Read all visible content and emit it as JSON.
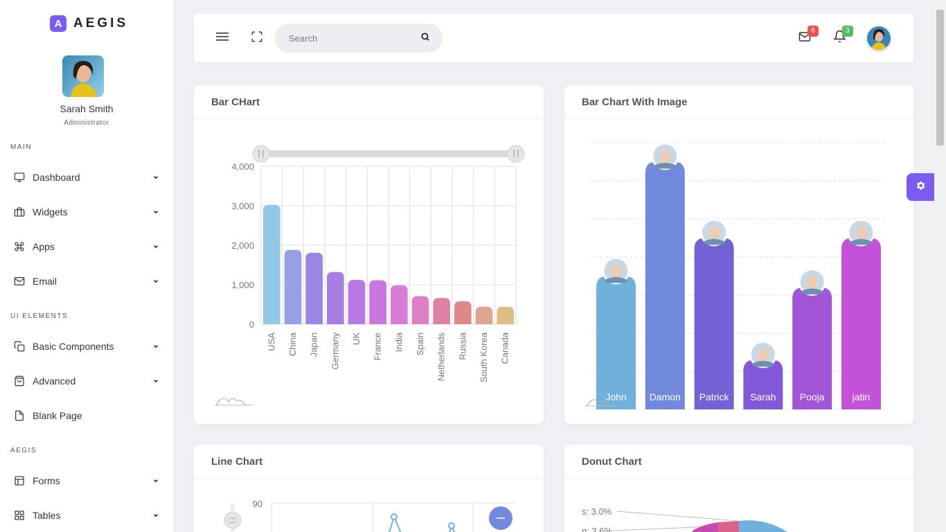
{
  "brand": {
    "name": "AEGIS",
    "logo_letter": "A"
  },
  "profile": {
    "name": "Sarah Smith",
    "role": "Administrator"
  },
  "sidebar": {
    "sections": [
      {
        "title": "MAIN",
        "items": [
          "Dashboard",
          "Widgets",
          "Apps",
          "Email"
        ]
      },
      {
        "title": "UI ELEMENTS",
        "items": [
          "Basic Components",
          "Advanced",
          "Blank Page"
        ]
      },
      {
        "title": "AEGIS",
        "items": [
          "Forms",
          "Tables"
        ]
      }
    ],
    "items": [
      {
        "label": "Dashboard",
        "icon": "monitor-icon",
        "has_submenu": true
      },
      {
        "label": "Widgets",
        "icon": "briefcase-icon",
        "has_submenu": true
      },
      {
        "label": "Apps",
        "icon": "command-icon",
        "has_submenu": true
      },
      {
        "label": "Email",
        "icon": "mail-icon",
        "has_submenu": true
      },
      {
        "label": "Basic Components",
        "icon": "copy-icon",
        "has_submenu": true
      },
      {
        "label": "Advanced",
        "icon": "shopping-bag-icon",
        "has_submenu": true
      },
      {
        "label": "Blank Page",
        "icon": "file-icon",
        "has_submenu": false
      },
      {
        "label": "Forms",
        "icon": "layout-icon",
        "has_submenu": true
      },
      {
        "label": "Tables",
        "icon": "grid-icon",
        "has_submenu": true
      }
    ]
  },
  "header": {
    "search_placeholder": "Search",
    "mail_count": "6",
    "notification_count": "3",
    "colors": {
      "mail_badge": "#f15050",
      "notification_badge": "#5cb85c"
    }
  },
  "cards": {
    "bar_chart_title": "Bar CHart",
    "bar_image_title": "Bar Chart With Image",
    "line_chart_title": "Line Chart",
    "donut_chart_title": "Donut Chart"
  },
  "chart_data": [
    {
      "type": "bar",
      "title": "Bar CHart",
      "categories": [
        "USA",
        "China",
        "Japan",
        "Germany",
        "UK",
        "France",
        "India",
        "Spain",
        "Netherlands",
        "Russia",
        "South Korea",
        "Canada"
      ],
      "values": [
        3025,
        1882,
        1809,
        1322,
        1122,
        1114,
        984,
        711,
        665,
        580,
        443,
        441
      ],
      "ylim": [
        0,
        4000
      ],
      "yticks": [
        "0",
        "1,000",
        "2,000",
        "3,000",
        "4,000"
      ],
      "colors": [
        "#93c7e6",
        "#95a1e3",
        "#9b87e3",
        "#a77ee3",
        "#b879e3",
        "#c877e1",
        "#d77dd7",
        "#de80c6",
        "#dc82a5",
        "#e08787",
        "#e0a590",
        "#e0bc86"
      ],
      "grid": true
    },
    {
      "type": "bar",
      "title": "Bar Chart With Image",
      "categories": [
        "John",
        "Damon",
        "Patrick",
        "Sarah",
        "Pooja",
        "jatin"
      ],
      "values": [
        35,
        65,
        45,
        13,
        32,
        45
      ],
      "ylim": [
        0,
        70
      ],
      "colors": [
        "#6fb1dc",
        "#7089dc",
        "#7561d6",
        "#8459d9",
        "#a355d7",
        "#c452d8"
      ]
    },
    {
      "type": "line",
      "title": "Line Chart",
      "yticks": [
        "90"
      ]
    },
    {
      "type": "pie",
      "title": "Donut Chart",
      "labels": [
        "s: 3.0%",
        "n: 3.6%"
      ]
    }
  ]
}
